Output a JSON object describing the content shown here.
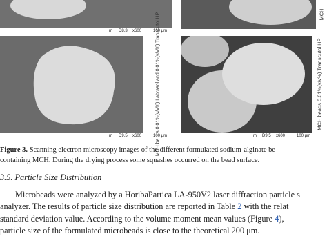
{
  "figure": {
    "panels": [
      {
        "scale": {
          "mode": "m",
          "wd": "D8.3",
          "mag": "x600",
          "bar": "100 μm"
        }
      },
      {
        "label": "MCH"
      },
      {
        "label": "MCH beads 0.01%(v/v%) Labrasol and 0.01%(v/v%) Transcutol HP",
        "scale": {
          "mode": "m",
          "wd": "D9.5",
          "mag": "x600",
          "bar": "100 μm"
        }
      },
      {
        "label": "MCH beads 0.01%(v/v%) Transcutol HP",
        "scale": {
          "mode": "m",
          "wd": "D9.5",
          "mag": "x600",
          "bar": "100 μm"
        }
      }
    ],
    "caption": {
      "label": "Figure 3.",
      "lines": [
        "Scanning electron microscopy images of the different formulated sodium-alginate be",
        "containing MCH. During the drying process some squashes occurred on the bead surface."
      ]
    }
  },
  "section": {
    "heading": "3.5. Particle Size Distribution",
    "lines": [
      [
        "Microbeads were analyzed by a HoribaPartica LA-950V2 laser diffraction particle s"
      ],
      [
        "analyzer. The results of particle size distribution are reported in Table ",
        "2",
        " with the relat"
      ],
      [
        "standard deviation value. According to the volume moment mean values (Figure ",
        "4",
        "),"
      ],
      [
        "particle size of the formulated microbeads is close to the theoretical 200 μm."
      ]
    ]
  }
}
